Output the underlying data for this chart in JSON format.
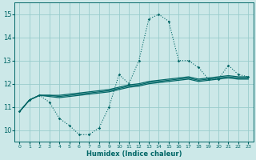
{
  "xlabel": "Humidex (Indice chaleur)",
  "background_color": "#cce8e8",
  "grid_color": "#99cccc",
  "line_color": "#006666",
  "xlim": [
    -0.5,
    23.5
  ],
  "ylim": [
    9.5,
    15.5
  ],
  "yticks": [
    10,
    11,
    12,
    13,
    14,
    15
  ],
  "xticks": [
    0,
    1,
    2,
    3,
    4,
    5,
    6,
    7,
    8,
    9,
    10,
    11,
    12,
    13,
    14,
    15,
    16,
    17,
    18,
    19,
    20,
    21,
    22,
    23
  ],
  "series": [
    [
      10.8,
      11.3,
      11.5,
      11.2,
      10.5,
      10.2,
      9.8,
      9.8,
      10.1,
      11.0,
      12.4,
      12.0,
      13.0,
      14.8,
      15.0,
      14.7,
      13.0,
      13.0,
      12.7,
      12.2,
      12.2,
      12.8,
      12.4,
      12.3
    ],
    [
      10.8,
      11.3,
      11.5,
      11.45,
      11.4,
      11.45,
      11.5,
      11.55,
      11.6,
      11.65,
      11.75,
      11.85,
      11.9,
      12.0,
      12.05,
      12.1,
      12.15,
      12.2,
      12.1,
      12.15,
      12.2,
      12.25,
      12.2,
      12.2
    ],
    [
      10.8,
      11.3,
      11.5,
      11.5,
      11.45,
      11.5,
      11.55,
      11.6,
      11.65,
      11.7,
      11.8,
      11.9,
      11.95,
      12.05,
      12.1,
      12.15,
      12.2,
      12.25,
      12.15,
      12.2,
      12.25,
      12.3,
      12.25,
      12.25
    ],
    [
      10.8,
      11.3,
      11.5,
      11.5,
      11.5,
      11.55,
      11.6,
      11.65,
      11.7,
      11.75,
      11.85,
      11.95,
      12.0,
      12.1,
      12.15,
      12.2,
      12.25,
      12.3,
      12.2,
      12.25,
      12.3,
      12.35,
      12.3,
      12.3
    ]
  ]
}
